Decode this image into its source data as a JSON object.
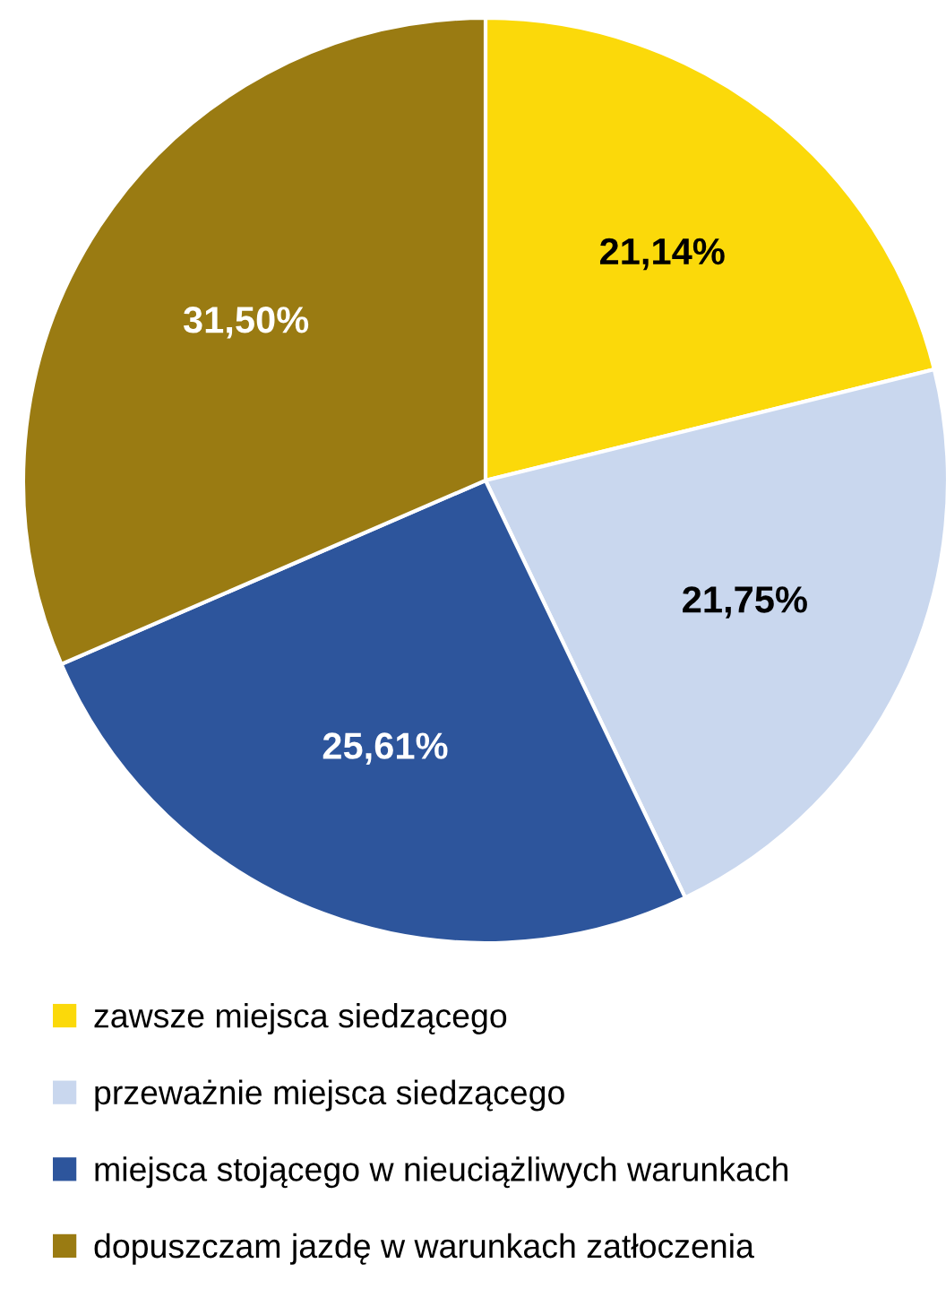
{
  "chart_data": {
    "type": "pie",
    "categories": [
      "zawsze miejsca siedzącego",
      "przeważnie miejsca siedzącego",
      "miejsca stojącego w nieuciążliwych warunkach",
      "dopuszczam jazdę w warunkach zatłoczenia"
    ],
    "values": [
      21.14,
      21.75,
      25.61,
      31.5
    ],
    "value_labels": [
      "21,14%",
      "21,75%",
      "25,61%",
      "31,50%"
    ],
    "colors": [
      "#fbd90a",
      "#c9d7ee",
      "#2d559c",
      "#9a7b12"
    ],
    "legend": "bottom"
  }
}
